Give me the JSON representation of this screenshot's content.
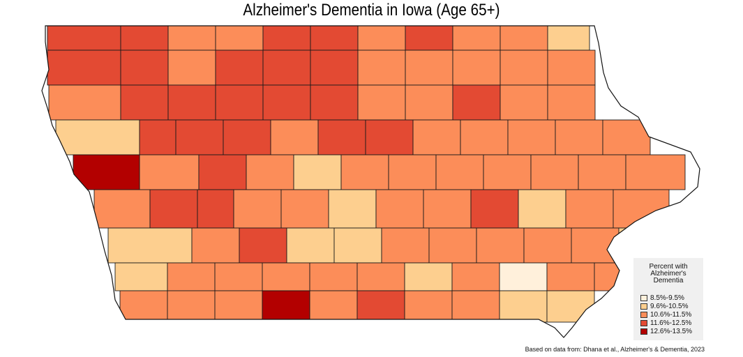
{
  "title": "Alzheimer's Dementia in Iowa (Age 65+)",
  "legend": {
    "title": "Percent with Alzheimer's Dementia",
    "classes": [
      {
        "label": "8.5%-9.5%",
        "color": "#fff0db"
      },
      {
        "label": "9.6%-10.5%",
        "color": "#fdcf8f"
      },
      {
        "label": "10.6%-11.5%",
        "color": "#fc8d59"
      },
      {
        "label": "11.6%-12.5%",
        "color": "#e34a33"
      },
      {
        "label": "12.6%-13.5%",
        "color": "#b30000"
      }
    ]
  },
  "source": "Based on data from: Dhana et al., Alzheimer's & Dementia, 2023",
  "map_data": {
    "rows": [
      [
        3,
        3,
        2,
        2,
        3,
        3,
        2,
        3,
        2,
        2,
        1
      ],
      [
        3,
        3,
        2,
        3,
        3,
        3,
        2,
        2,
        2,
        2,
        2
      ],
      [
        2,
        3,
        3,
        3,
        3,
        3,
        2,
        2,
        3,
        2,
        2
      ],
      [
        1,
        3,
        3,
        3,
        2,
        3,
        3,
        2,
        2,
        2,
        2,
        2
      ],
      [
        4,
        2,
        3,
        2,
        1,
        2,
        2,
        2,
        2,
        2,
        2,
        2
      ],
      [
        2,
        3,
        3,
        2,
        2,
        1,
        2,
        2,
        3,
        1,
        2,
        2
      ],
      [
        1,
        2,
        3,
        1,
        1,
        2,
        2,
        2,
        2,
        2,
        1
      ],
      [
        1,
        2,
        2,
        2,
        2,
        2,
        1,
        2,
        0,
        2,
        2
      ],
      [
        2,
        2,
        2,
        4,
        2,
        3,
        2,
        2,
        1,
        1
      ]
    ]
  }
}
